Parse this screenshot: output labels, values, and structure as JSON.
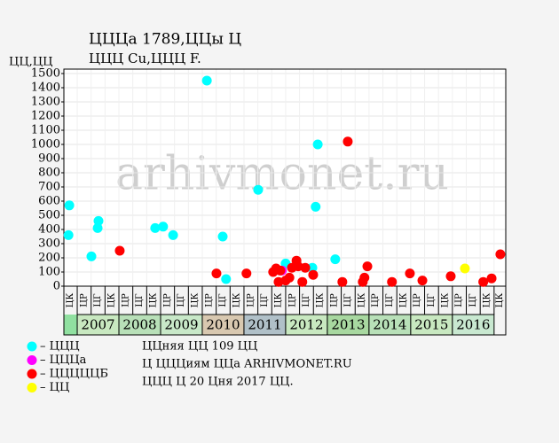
{
  "chart_data": {
    "type": "scatter",
    "title": "ЦЦЦа 1789,ЦЦы Ц",
    "subtitle": "ЦЦЦ Cu,ЦЦЦ F.",
    "y_label": "ЦЦ,ЦЦ",
    "watermark": "arhivmonet.ru",
    "xlim": [
      2006.68,
      2017.28
    ],
    "ylim": [
      0,
      1500
    ],
    "yticks": [
      0,
      100,
      200,
      300,
      400,
      500,
      600,
      700,
      800,
      900,
      1000,
      1100,
      1200,
      1300,
      1400,
      1500
    ],
    "grid": true,
    "period_labels": [
      "ЦК",
      "ЦР",
      "ЦГ",
      "ЦК",
      "ЦР",
      "ЦГ",
      "ЦК",
      "ЦР",
      "ЦГ",
      "ЦК",
      "ЦР",
      "ЦГ",
      "ЦК",
      "ЦР",
      "ЦГ",
      "ЦК",
      "ЦР",
      "ЦГ",
      "ЦК",
      "ЦР",
      "ЦГ",
      "ЦК",
      "ЦР",
      "ЦГ",
      "ЦК",
      "ЦР",
      "ЦГ",
      "ЦК",
      "ЦР",
      "ЦГ",
      "ЦК",
      "ЦК"
    ],
    "year_bands": [
      {
        "value": 2007.5,
        "label": "2007"
      },
      {
        "value": 2008.5,
        "label": "2008"
      },
      {
        "value": 2009.5,
        "label": "2009"
      },
      {
        "value": 2010.5,
        "label": "2010"
      },
      {
        "value": 2011.5,
        "label": "2011"
      },
      {
        "value": 2012.5,
        "label": "2012"
      },
      {
        "value": 2013.5,
        "label": "2013"
      },
      {
        "value": 2014.5,
        "label": "2014"
      },
      {
        "value": 2015.5,
        "label": "2015"
      },
      {
        "value": 2016.5,
        "label": "2016"
      }
    ],
    "band_colors": [
      "#c8e8c0",
      "#b8e0b8",
      "#c8e8c8",
      "#d8c8b0",
      "#b0c0c8",
      "#c8e8c0",
      "#a8d8a0",
      "#b8e0b8",
      "#c8e8c0",
      "#c8e8d0"
    ],
    "lead_band_color": "#90e0a0",
    "series": [
      {
        "name": "– ЦЦЦ",
        "color": "#00ffff",
        "x": [
          2006.81,
          2006.79,
          2007.34,
          2007.51,
          2007.49,
          2008.87,
          2009.06,
          2009.3,
          2010.11,
          2010.49,
          2010.57,
          2011.34,
          2012.0,
          2012.64,
          2012.72,
          2012.77,
          2013.19
        ],
        "values": [
          570,
          360,
          210,
          460,
          410,
          410,
          420,
          360,
          1450,
          350,
          50,
          680,
          160,
          130,
          560,
          1000,
          190
        ]
      },
      {
        "name": "– ЦЦЦа",
        "color": "#ff00ff",
        "x": [
          2011.91
        ],
        "values": [
          110
        ]
      },
      {
        "name": "– ЦЦЦЦЦБ",
        "color": "#ff0000",
        "x": [
          2008.02,
          2010.34,
          2011.06,
          2011.7,
          2011.77,
          2011.83,
          2011.87,
          2012.0,
          2012.09,
          2012.15,
          2012.26,
          2012.3,
          2012.4,
          2012.47,
          2012.66,
          2013.36,
          2013.49,
          2013.85,
          2013.89,
          2013.96,
          2014.55,
          2014.98,
          2015.28,
          2015.96,
          2016.74,
          2016.94,
          2017.15
        ],
        "values": [
          250,
          90,
          90,
          100,
          125,
          30,
          110,
          40,
          60,
          130,
          180,
          140,
          30,
          130,
          80,
          30,
          1020,
          30,
          60,
          140,
          30,
          90,
          40,
          70,
          30,
          55,
          225
        ]
      },
      {
        "name": "– ЦЦ",
        "color": "#ffff00",
        "x": [
          2016.3
        ],
        "values": [
          125
        ]
      }
    ],
    "notes": [
      "ЦЦняя ЦЦ 109 ЦЦ",
      "Ц ЦЦЦиям ЦЦа ARHIVMONET.RU",
      "ЦЦЦ Ц 20 Цня 2017 ЦЦ."
    ]
  }
}
